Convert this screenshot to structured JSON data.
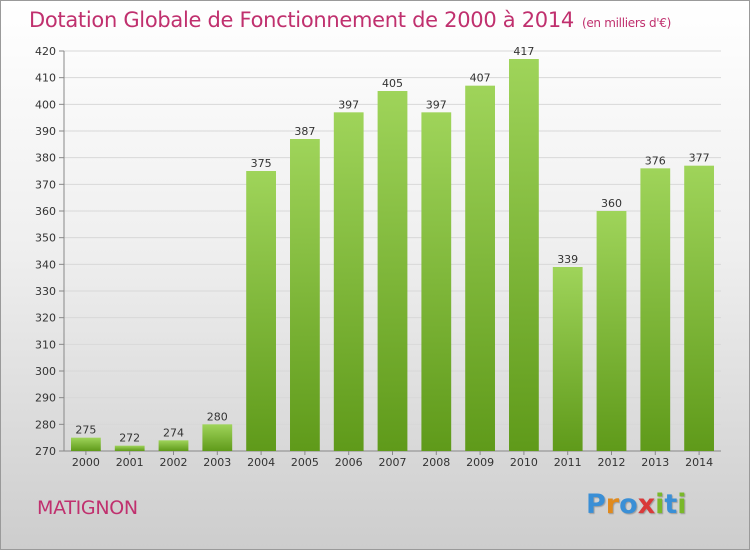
{
  "title": "Dotation Globale de Fonctionnement de 2000 à 2014",
  "subtitle": "(en milliers d'€)",
  "commune": "MATIGNON",
  "logo": {
    "letters": [
      "P",
      "r",
      "o",
      "x",
      "i",
      "t",
      "i"
    ],
    "colors": [
      "#3a8fd6",
      "#e08a1e",
      "#3a8fd6",
      "#d93a3a",
      "#7ab82a",
      "#3a8fd6",
      "#7ab82a"
    ]
  },
  "colors": {
    "bar_light": "#9fd45a",
    "bar_dark": "#5f9a1a",
    "title": "#c0306e",
    "grid": "#d8d8d8"
  },
  "chart_data": {
    "type": "bar",
    "title": "Dotation Globale de Fonctionnement de 2000 à 2014",
    "subtitle": "(en milliers d'€)",
    "categories": [
      "2000",
      "2001",
      "2002",
      "2003",
      "2004",
      "2005",
      "2006",
      "2007",
      "2008",
      "2009",
      "2010",
      "2011",
      "2012",
      "2013",
      "2014"
    ],
    "values": [
      275,
      272,
      274,
      280,
      375,
      387,
      397,
      405,
      397,
      407,
      417,
      339,
      360,
      376,
      377
    ],
    "ylim": [
      270,
      420
    ],
    "yticks": [
      270,
      280,
      290,
      300,
      310,
      320,
      330,
      340,
      350,
      360,
      370,
      380,
      390,
      400,
      410,
      420
    ],
    "grid": true
  }
}
